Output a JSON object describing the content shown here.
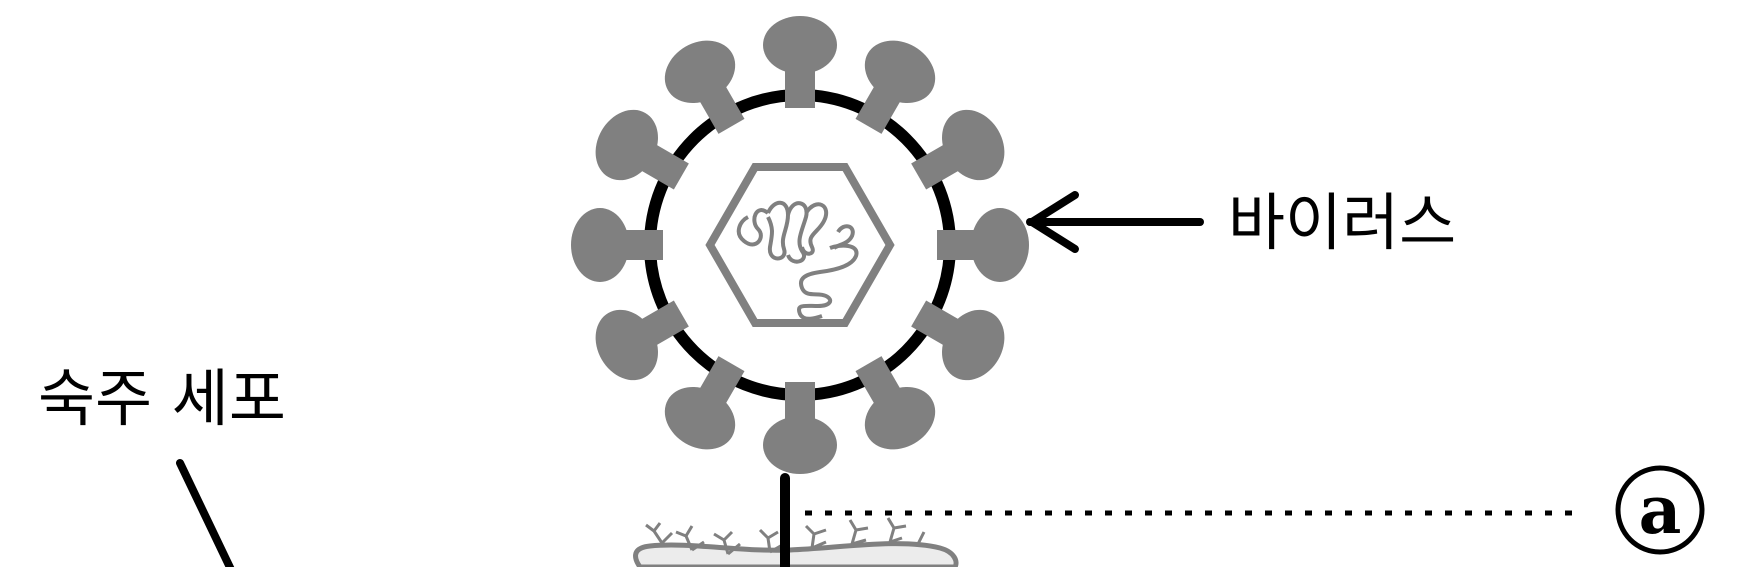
{
  "labels": {
    "virus": "바이러스",
    "host_cell": "숙주 세포",
    "marker": "a"
  },
  "colors": {
    "virus_gray": "#808080",
    "outline_black": "#000000",
    "cell_fill": "#ececec",
    "background": "#ffffff"
  },
  "icons": {
    "virus": "virus-icon",
    "genome": "rna-strand-icon",
    "receptors": "receptor-icon"
  }
}
